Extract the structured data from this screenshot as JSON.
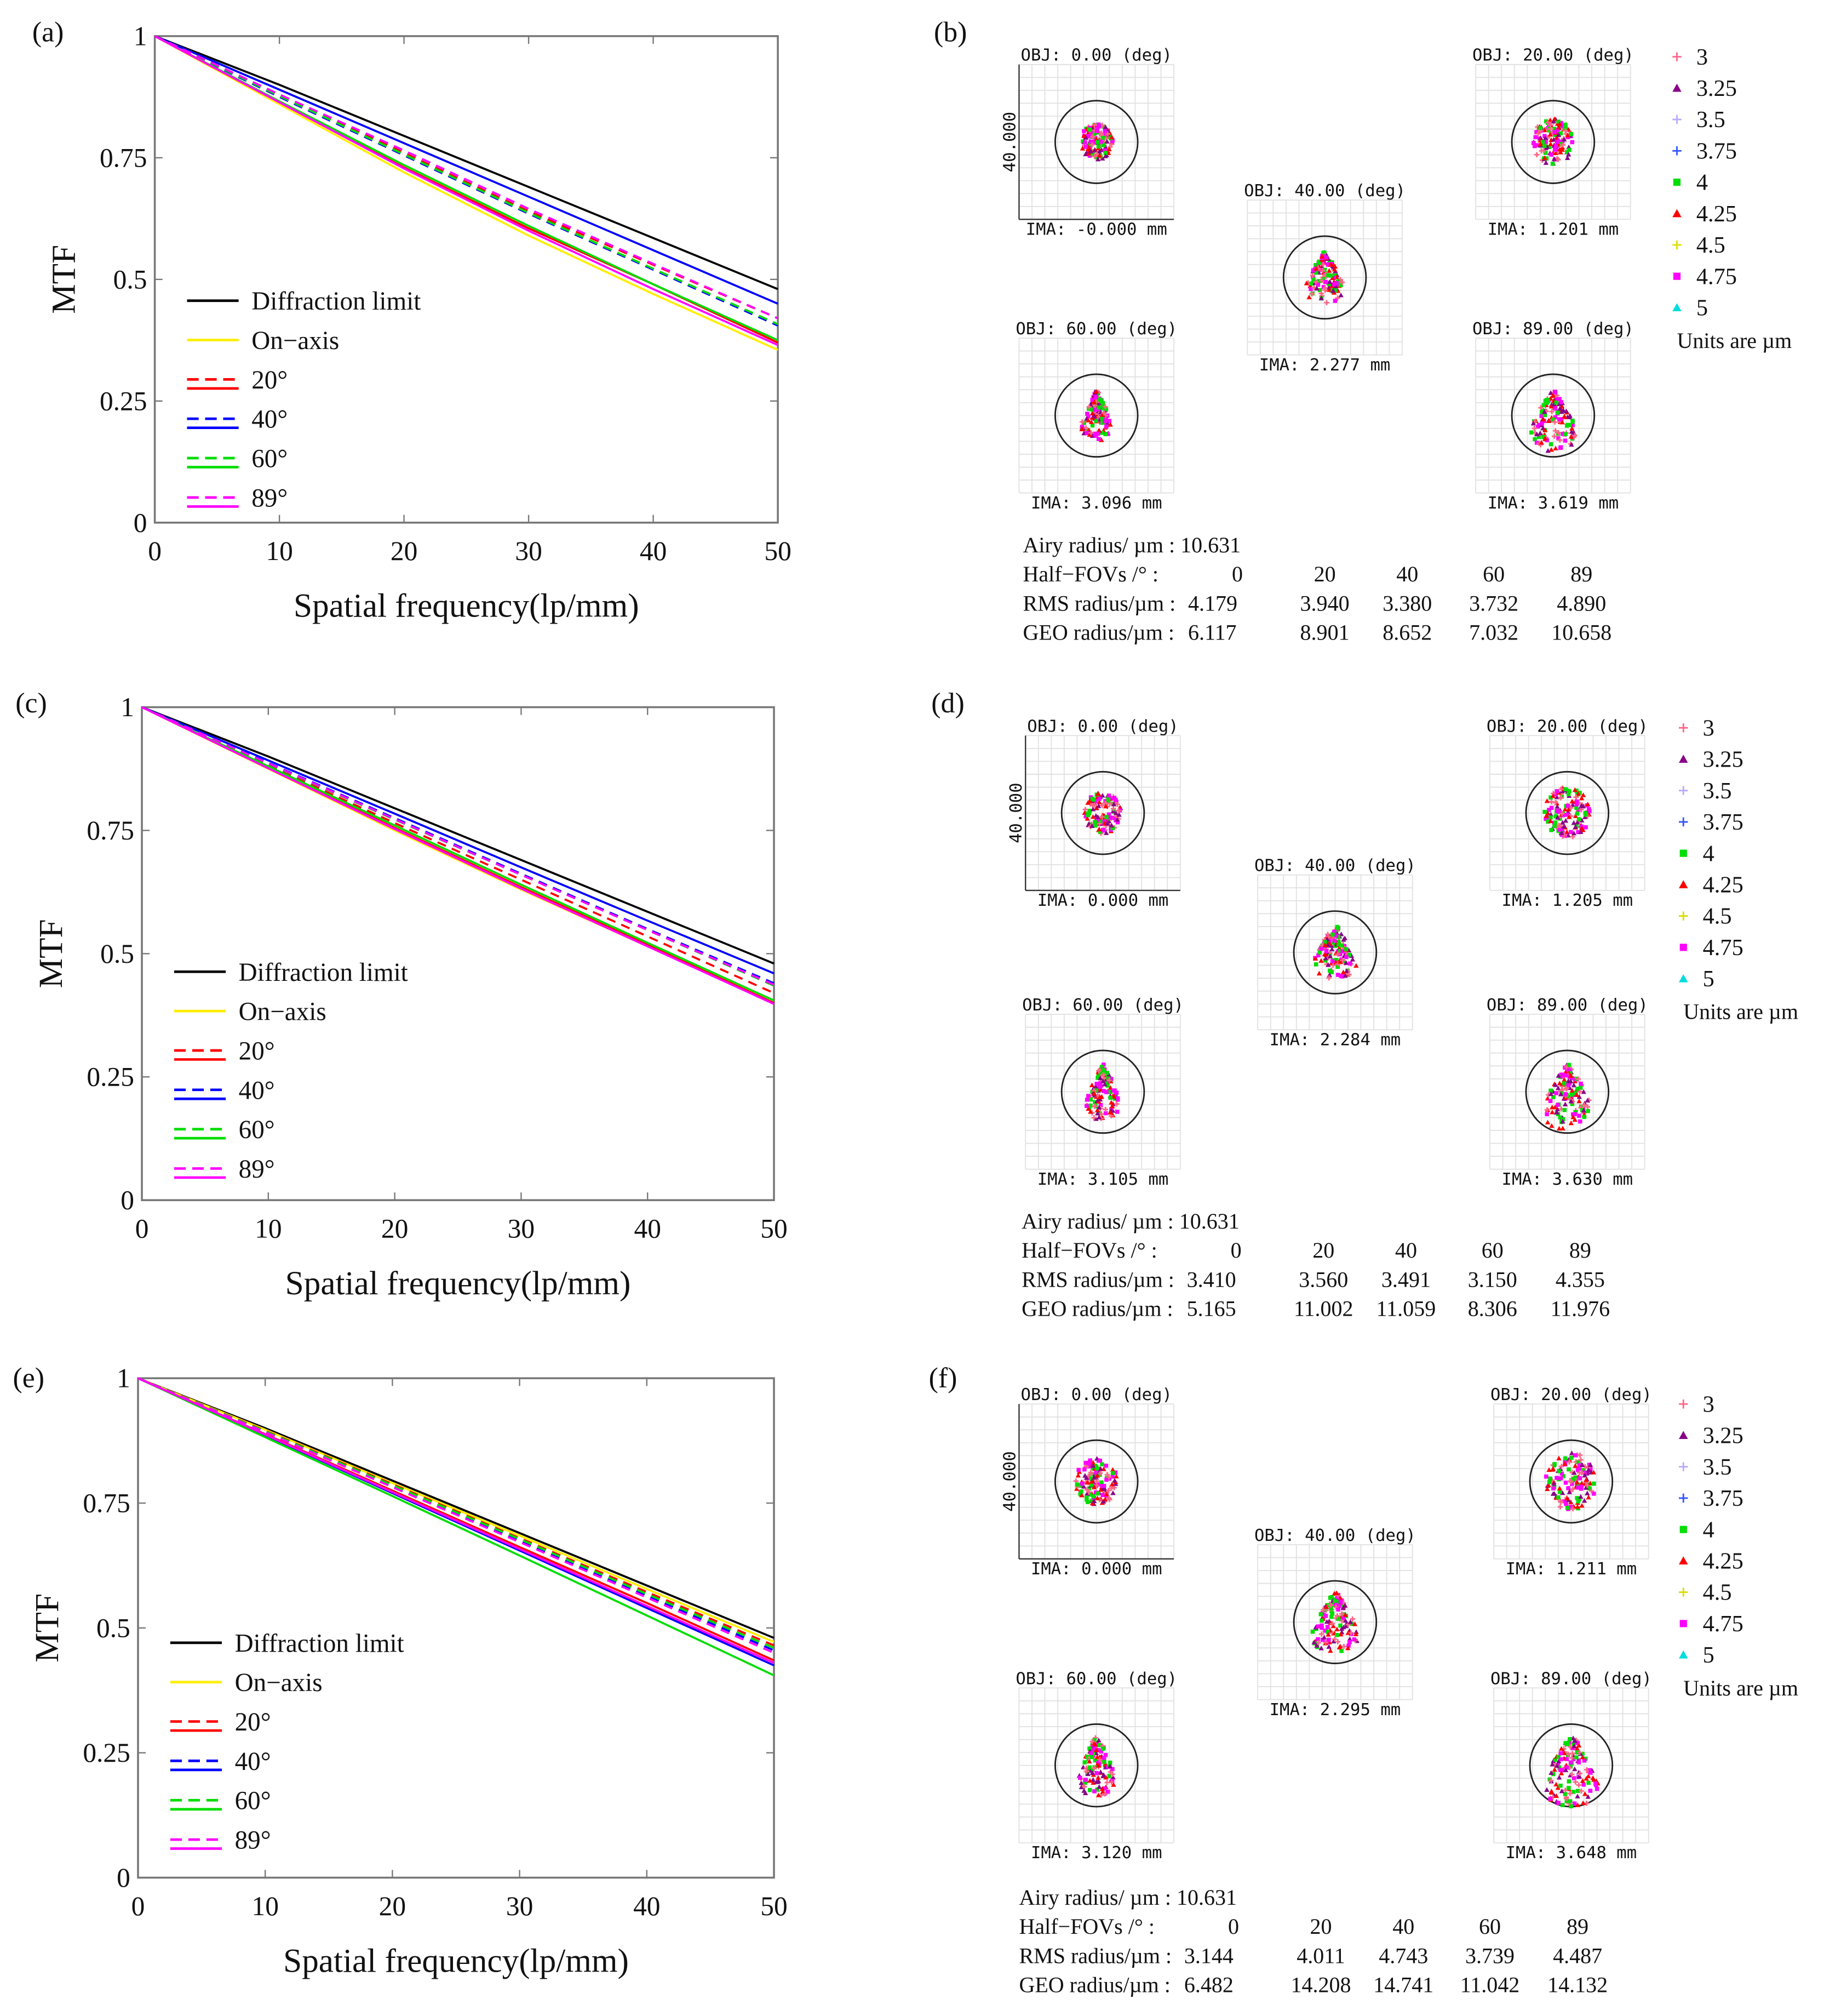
{
  "chart_data": [
    {
      "panel": "(a)",
      "type": "line",
      "xlabel": "Spatial frequency(lp/mm)",
      "ylabel": "MTF",
      "xlim": [
        0,
        50
      ],
      "ylim": [
        0,
        1
      ],
      "xticks": [
        "0",
        "10",
        "20",
        "30",
        "40",
        "50"
      ],
      "yticks": [
        "0",
        "0.25",
        "0.5",
        "0.75",
        "1"
      ],
      "legend": "left-center",
      "x": [
        0,
        10,
        20,
        30,
        40,
        50
      ],
      "series": [
        {
          "name": "Diffraction limit",
          "color": "#000000",
          "dash": false,
          "values": [
            1,
            0.9,
            0.795,
            0.69,
            0.585,
            0.48
          ]
        },
        {
          "name": "On−axis",
          "color": "#ffee00",
          "dash": false,
          "values": [
            1,
            0.86,
            0.72,
            0.59,
            0.47,
            0.355
          ]
        },
        {
          "name": "20°",
          "color": "#ff0000",
          "dash": true,
          "values": [
            1,
            0.88,
            0.76,
            0.64,
            0.53,
            0.42
          ]
        },
        {
          "name": "20°",
          "color": "#ff0000",
          "dash": false,
          "values": [
            1,
            0.865,
            0.73,
            0.605,
            0.49,
            0.37
          ]
        },
        {
          "name": "40°",
          "color": "#0000ff",
          "dash": true,
          "values": [
            1,
            0.875,
            0.755,
            0.635,
            0.52,
            0.405
          ]
        },
        {
          "name": "40°",
          "color": "#0000ff",
          "dash": false,
          "values": [
            1,
            0.89,
            0.78,
            0.67,
            0.56,
            0.45
          ]
        },
        {
          "name": "60°",
          "color": "#00dd00",
          "dash": true,
          "values": [
            1,
            0.877,
            0.757,
            0.637,
            0.522,
            0.408
          ]
        },
        {
          "name": "60°",
          "color": "#00dd00",
          "dash": false,
          "values": [
            1,
            0.866,
            0.735,
            0.61,
            0.49,
            0.375
          ]
        },
        {
          "name": "89°",
          "color": "#ff00ff",
          "dash": true,
          "values": [
            1,
            0.88,
            0.765,
            0.645,
            0.532,
            0.42
          ]
        },
        {
          "name": "89°",
          "color": "#ff00ff",
          "dash": false,
          "values": [
            1,
            0.864,
            0.728,
            0.6,
            0.48,
            0.365
          ]
        }
      ]
    },
    {
      "panel": "(c)",
      "type": "line",
      "xlabel": "Spatial frequency(lp/mm)",
      "ylabel": "MTF",
      "xlim": [
        0,
        50
      ],
      "ylim": [
        0,
        1
      ],
      "xticks": [
        "0",
        "10",
        "20",
        "30",
        "40",
        "50"
      ],
      "yticks": [
        "0",
        "0.25",
        "0.5",
        "0.75",
        "1"
      ],
      "legend": "left-center",
      "x": [
        0,
        10,
        20,
        30,
        40,
        50
      ],
      "series": [
        {
          "name": "Diffraction limit",
          "color": "#000000",
          "dash": false,
          "values": [
            1,
            0.9,
            0.795,
            0.69,
            0.585,
            0.48
          ]
        },
        {
          "name": "On−axis",
          "color": "#ffee00",
          "dash": false,
          "values": [
            1,
            0.875,
            0.75,
            0.63,
            0.515,
            0.4
          ]
        },
        {
          "name": "20°",
          "color": "#ff0000",
          "dash": true,
          "values": [
            1,
            0.882,
            0.765,
            0.65,
            0.535,
            0.42
          ]
        },
        {
          "name": "20°",
          "color": "#ff0000",
          "dash": false,
          "values": [
            1,
            0.878,
            0.755,
            0.635,
            0.518,
            0.4
          ]
        },
        {
          "name": "40°",
          "color": "#0000ff",
          "dash": true,
          "values": [
            1,
            0.887,
            0.775,
            0.662,
            0.55,
            0.44
          ]
        },
        {
          "name": "40°",
          "color": "#0000ff",
          "dash": false,
          "values": [
            1,
            0.892,
            0.784,
            0.675,
            0.567,
            0.46
          ]
        },
        {
          "name": "60°",
          "color": "#00dd00",
          "dash": true,
          "values": [
            1,
            0.885,
            0.772,
            0.66,
            0.548,
            0.435
          ]
        },
        {
          "name": "60°",
          "color": "#00dd00",
          "dash": false,
          "values": [
            1,
            0.88,
            0.76,
            0.64,
            0.522,
            0.405
          ]
        },
        {
          "name": "89°",
          "color": "#ff00ff",
          "dash": true,
          "values": [
            1,
            0.886,
            0.773,
            0.66,
            0.548,
            0.437
          ]
        },
        {
          "name": "89°",
          "color": "#ff00ff",
          "dash": false,
          "values": [
            1,
            0.876,
            0.753,
            0.632,
            0.515,
            0.398
          ]
        }
      ]
    },
    {
      "panel": "(e)",
      "type": "line",
      "xlabel": "Spatial frequency(lp/mm)",
      "ylabel": "MTF",
      "xlim": [
        0,
        50
      ],
      "ylim": [
        0,
        1
      ],
      "xticks": [
        "0",
        "10",
        "20",
        "30",
        "40",
        "50"
      ],
      "yticks": [
        "0",
        "0.25",
        "0.5",
        "0.75",
        "1"
      ],
      "legend": "left-center",
      "x": [
        0,
        10,
        20,
        30,
        40,
        50
      ],
      "series": [
        {
          "name": "Diffraction limit",
          "color": "#000000",
          "dash": false,
          "values": [
            1,
            0.9,
            0.795,
            0.69,
            0.585,
            0.48
          ]
        },
        {
          "name": "On−axis",
          "color": "#ffee00",
          "dash": false,
          "values": [
            1,
            0.897,
            0.79,
            0.685,
            0.578,
            0.472
          ]
        },
        {
          "name": "20°",
          "color": "#ff0000",
          "dash": true,
          "values": [
            1,
            0.895,
            0.788,
            0.68,
            0.572,
            0.465
          ]
        },
        {
          "name": "20°",
          "color": "#ff0000",
          "dash": false,
          "values": [
            1,
            0.888,
            0.775,
            0.662,
            0.55,
            0.435
          ]
        },
        {
          "name": "40°",
          "color": "#0000ff",
          "dash": true,
          "values": [
            1,
            0.893,
            0.784,
            0.675,
            0.565,
            0.455
          ]
        },
        {
          "name": "40°",
          "color": "#0000ff",
          "dash": false,
          "values": [
            1,
            0.886,
            0.77,
            0.655,
            0.54,
            0.425
          ]
        },
        {
          "name": "60°",
          "color": "#00dd00",
          "dash": true,
          "values": [
            1,
            0.894,
            0.786,
            0.678,
            0.568,
            0.46
          ]
        },
        {
          "name": "60°",
          "color": "#00dd00",
          "dash": false,
          "values": [
            1,
            0.882,
            0.764,
            0.645,
            0.525,
            0.405
          ]
        },
        {
          "name": "89°",
          "color": "#ff00ff",
          "dash": true,
          "values": [
            1,
            0.892,
            0.782,
            0.672,
            0.561,
            0.45
          ]
        },
        {
          "name": "89°",
          "color": "#ff00ff",
          "dash": false,
          "values": [
            1,
            0.887,
            0.772,
            0.658,
            0.544,
            0.43
          ]
        }
      ]
    }
  ],
  "spot_diagrams": [
    {
      "panel": "(b)",
      "scale_label": "40.000",
      "fields": [
        {
          "obj": "OBJ: 0.00 (deg)",
          "ima": "IMA: -0.000 mm"
        },
        {
          "obj": "OBJ: 20.00 (deg)",
          "ima": "IMA: 1.201 mm"
        },
        {
          "obj": "OBJ: 40.00 (deg)",
          "ima": "IMA: 2.277 mm"
        },
        {
          "obj": "OBJ: 60.00 (deg)",
          "ima": "IMA: 3.096 mm"
        },
        {
          "obj": "OBJ: 89.00 (deg)",
          "ima": "IMA: 3.619 mm"
        }
      ],
      "table": {
        "airy": "Airy radius/ µm :   10.631",
        "fov_label": "Half−FOVs /°      :",
        "rms_label": "RMS radius/µm :",
        "geo_label": "GEO radius/µm :",
        "fovs": [
          "0",
          "20",
          "40",
          "60",
          "89"
        ],
        "rms": [
          "4.179",
          "3.940",
          "3.380",
          "3.732",
          "4.890"
        ],
        "geo": [
          "6.117",
          "8.901",
          "8.652",
          "7.032",
          "10.658"
        ]
      }
    },
    {
      "panel": "(d)",
      "scale_label": "40.000",
      "fields": [
        {
          "obj": "OBJ: 0.00 (deg)",
          "ima": "IMA: 0.000 mm"
        },
        {
          "obj": "OBJ: 20.00 (deg)",
          "ima": "IMA: 1.205 mm"
        },
        {
          "obj": "OBJ: 40.00 (deg)",
          "ima": "IMA: 2.284 mm"
        },
        {
          "obj": "OBJ: 60.00 (deg)",
          "ima": "IMA: 3.105 mm"
        },
        {
          "obj": "OBJ: 89.00 (deg)",
          "ima": "IMA: 3.630 mm"
        }
      ],
      "table": {
        "airy": "Airy radius/ µm :   10.631",
        "fov_label": "Half−FOVs /°      :",
        "rms_label": "RMS radius/µm :",
        "geo_label": "GEO radius/µm :",
        "fovs": [
          "0",
          "20",
          "40",
          "60",
          "89"
        ],
        "rms": [
          "3.410",
          "3.560",
          "3.491",
          "3.150",
          "4.355"
        ],
        "geo": [
          "5.165",
          "11.002",
          "11.059",
          "8.306",
          "11.976"
        ]
      }
    },
    {
      "panel": "(f)",
      "scale_label": "40.000",
      "fields": [
        {
          "obj": "OBJ: 0.00 (deg)",
          "ima": "IMA: 0.000 mm"
        },
        {
          "obj": "OBJ: 20.00 (deg)",
          "ima": "IMA: 1.211 mm"
        },
        {
          "obj": "OBJ: 40.00 (deg)",
          "ima": "IMA: 2.295 mm"
        },
        {
          "obj": "OBJ: 60.00 (deg)",
          "ima": "IMA: 3.120 mm"
        },
        {
          "obj": "OBJ: 89.00 (deg)",
          "ima": "IMA: 3.648 mm"
        }
      ],
      "table": {
        "airy": "Airy radius/ µm :   10.631",
        "fov_label": "Half−FOVs /°      :",
        "rms_label": "RMS radius/µm :",
        "geo_label": "GEO radius/µm :",
        "fovs": [
          "0",
          "20",
          "40",
          "60",
          "89"
        ],
        "rms": [
          "3.144",
          "4.011",
          "4.743",
          "3.739",
          "4.487"
        ],
        "geo": [
          "6.482",
          "14.208",
          "14.741",
          "11.042",
          "14.132"
        ]
      }
    }
  ],
  "wavelength_legend": {
    "items": [
      {
        "label": "3",
        "marker": "plus",
        "color": "#ff6688"
      },
      {
        "label": "3.25",
        "marker": "triangle",
        "color": "#880088"
      },
      {
        "label": "3.5",
        "marker": "plus",
        "color": "#bbaaff"
      },
      {
        "label": "3.75",
        "marker": "plus",
        "color": "#3355ff"
      },
      {
        "label": "4",
        "marker": "square",
        "color": "#00dd00"
      },
      {
        "label": "4.25",
        "marker": "triangle",
        "color": "#ff0000"
      },
      {
        "label": "4.5",
        "marker": "plus",
        "color": "#dddd00"
      },
      {
        "label": "4.75",
        "marker": "square",
        "color": "#ff00ff"
      },
      {
        "label": "5",
        "marker": "triangle",
        "color": "#00dddd"
      }
    ],
    "units": "Units are µm"
  }
}
